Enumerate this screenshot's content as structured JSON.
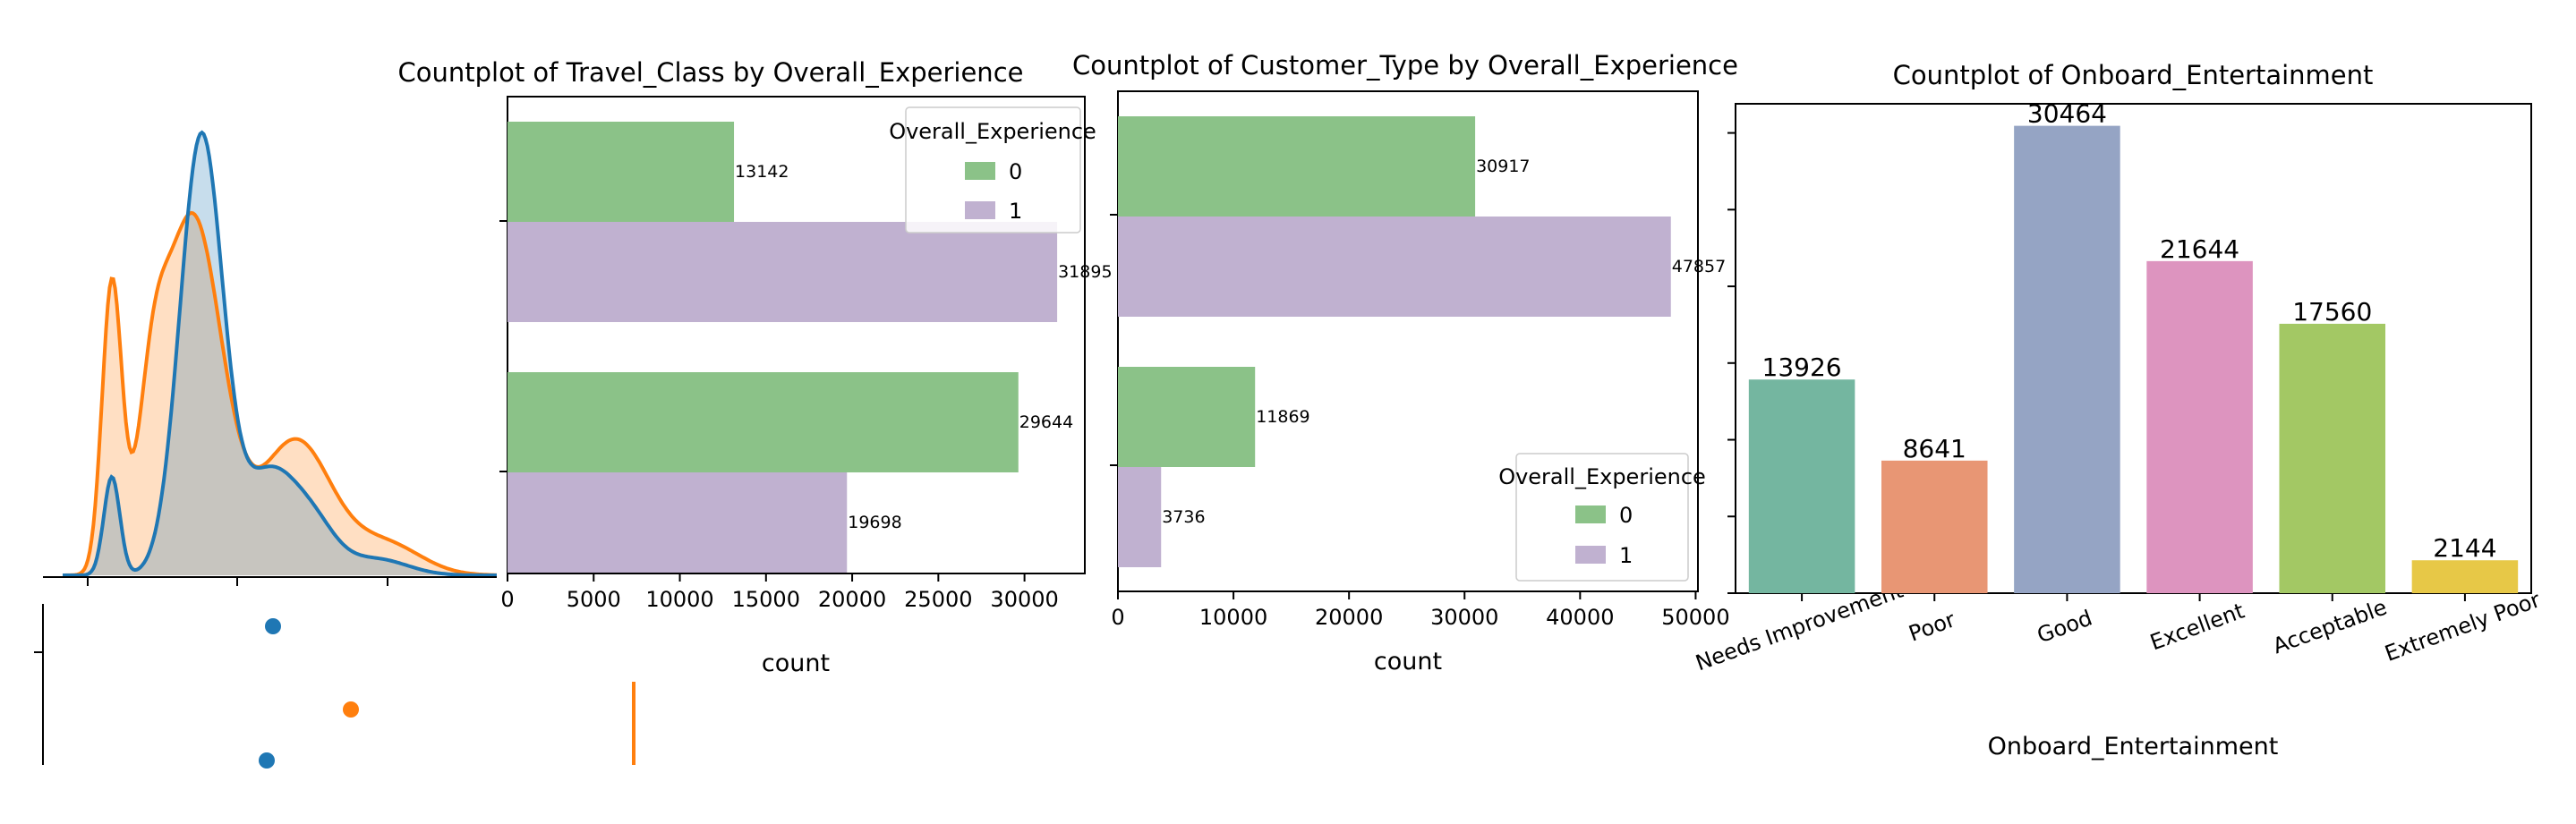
{
  "chart_data": [
    {
      "type": "area",
      "title": "",
      "xlabel": "",
      "ylabel": "",
      "series": [
        {
          "color": "#1f77b4"
        },
        {
          "color": "#ff7f0e"
        }
      ],
      "grid": false
    },
    {
      "type": "scatter",
      "title": "",
      "points": [
        {
          "color": "#1f77b4"
        },
        {
          "color": "#ff7f0e"
        },
        {
          "color": "#1f77b4"
        }
      ]
    },
    {
      "type": "bar",
      "orientation": "horizontal",
      "title": "Countplot of Travel_Class by Overall_Experience",
      "xlabel": "count",
      "ylabel": "",
      "xlim": [
        0,
        33500
      ],
      "xticks": [
        0,
        5000,
        10000,
        15000,
        20000,
        25000,
        30000
      ],
      "categories": [
        "",
        ""
      ],
      "series": [
        {
          "name": "0",
          "values": [
            13142,
            29644
          ],
          "color": "#8bc288"
        },
        {
          "name": "1",
          "values": [
            31895,
            19698
          ],
          "color": "#c0b1d0"
        }
      ],
      "legend": {
        "title": "Overall_Experience",
        "placement": "top-right"
      },
      "grid": false
    },
    {
      "type": "bar",
      "orientation": "horizontal",
      "title": "Countplot of Customer_Type by Overall_Experience",
      "xlabel": "count",
      "ylabel": "",
      "xlim": [
        0,
        50200
      ],
      "xticks": [
        0,
        10000,
        20000,
        30000,
        40000,
        50000
      ],
      "categories": [
        "",
        ""
      ],
      "series": [
        {
          "name": "0",
          "values": [
            30917,
            11869
          ],
          "color": "#8bc288"
        },
        {
          "name": "1",
          "values": [
            47857,
            3736
          ],
          "color": "#c0b1d0"
        }
      ],
      "legend": {
        "title": "Overall_Experience",
        "placement": "lower-right"
      },
      "grid": false
    },
    {
      "type": "bar",
      "title": "Countplot of Onboard_Entertainment",
      "xlabel": "Onboard_Entertainment",
      "ylabel": "",
      "ylim": [
        0,
        31900
      ],
      "categories": [
        "Needs Improvement",
        "Poor",
        "Good",
        "Excellent",
        "Acceptable",
        "Extremely Poor"
      ],
      "values": [
        13926,
        8641,
        30464,
        21644,
        17560,
        2144
      ],
      "colors": [
        "#74b6a0",
        "#e89674",
        "#95a4c4",
        "#dd94bf",
        "#a3c864",
        "#e7c847"
      ],
      "grid": false
    }
  ]
}
